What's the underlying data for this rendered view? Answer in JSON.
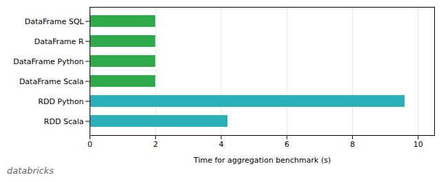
{
  "chart_data": {
    "type": "bar",
    "orientation": "horizontal",
    "categories": [
      "DataFrame SQL",
      "DataFrame R",
      "DataFrame Python",
      "DataFrame Scala",
      "RDD Python",
      "RDD Scala"
    ],
    "values": [
      2.0,
      2.0,
      2.0,
      2.0,
      9.6,
      4.2
    ],
    "colors": [
      "#2eaa4a",
      "#2eaa4a",
      "#2eaa4a",
      "#2eaa4a",
      "#2ab0b8",
      "#2ab0b8"
    ],
    "xlabel": "Time for aggregation benchmark (s)",
    "xlim": [
      0,
      10.5
    ],
    "xticks": [
      0,
      2,
      4,
      6,
      8,
      10
    ],
    "grid": true,
    "annotations": [
      "databricks"
    ]
  }
}
